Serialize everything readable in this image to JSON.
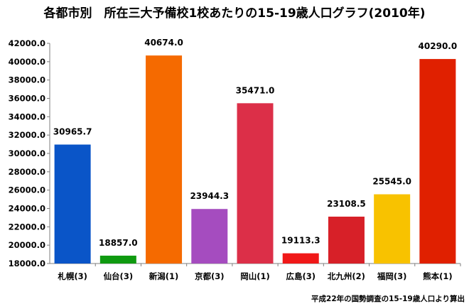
{
  "chart_data": {
    "type": "bar",
    "title": "各都市別　所在三大予備校1校あたりの15-19歳人口グラフ(2010年)",
    "categories": [
      "札幌(3)",
      "仙台(3)",
      "新潟(1)",
      "京都(3)",
      "岡山(1)",
      "広島(3)",
      "北九州(2)",
      "福岡(3)",
      "熊本(1)"
    ],
    "values": [
      30965.7,
      18857.0,
      40674.0,
      23944.3,
      35471.0,
      19113.3,
      23108.5,
      25545.0,
      40290.0
    ],
    "value_labels": [
      "30965.7",
      "18857.0",
      "40674.0",
      "23944.3",
      "35471.0",
      "19113.3",
      "23108.5",
      "25545.0",
      "40290.0"
    ],
    "colors": [
      "#0a55c8",
      "#0f9a10",
      "#f56a00",
      "#a54cbf",
      "#dc2f48",
      "#f01818",
      "#d72028",
      "#f8c200",
      "#e02000"
    ],
    "ylim": [
      18000,
      42000
    ],
    "yticks": [
      "18000.0",
      "20000.0",
      "22000.0",
      "24000.0",
      "26000.0",
      "28000.0",
      "30000.0",
      "32000.0",
      "34000.0",
      "36000.0",
      "38000.0",
      "40000.0",
      "42000.0"
    ],
    "grid": false,
    "legend": "none",
    "xlabel": "",
    "ylabel": "",
    "note": "平成22年の国勢調査の15-19歳人口より算出"
  }
}
